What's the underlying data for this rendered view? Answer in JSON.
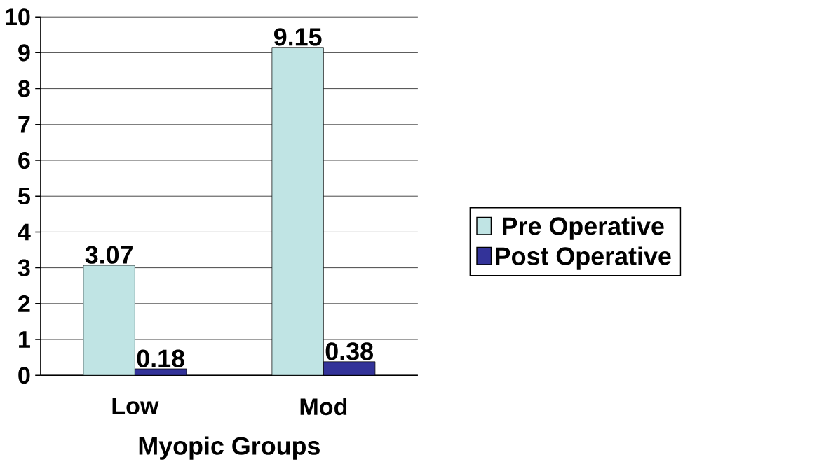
{
  "chart_data": {
    "type": "bar",
    "xlabel": "Myopic Groups",
    "categories": [
      "Low",
      "Mod"
    ],
    "series": [
      {
        "name": "Pre Operative",
        "color": "#c0e4e4",
        "values": [
          3.07,
          9.15
        ]
      },
      {
        "name": "Post Operative",
        "color": "#333399",
        "values": [
          0.18,
          0.38
        ]
      }
    ],
    "ylim": [
      0,
      10
    ],
    "yticks": [
      0,
      1,
      2,
      3,
      4,
      5,
      6,
      7,
      8,
      9,
      10
    ],
    "grid": "y",
    "legend": "right",
    "data_labels": true
  }
}
